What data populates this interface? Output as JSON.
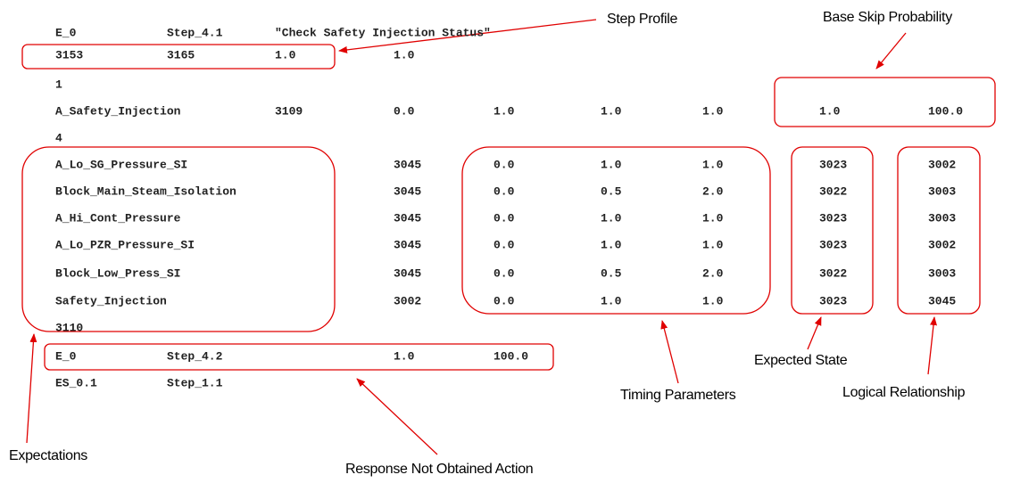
{
  "lines": [
    [
      "E_0",
      "Step_4.1",
      "\"Check Safety Injection Status\""
    ],
    [
      "3153",
      "3165",
      "1.0",
      "1.0"
    ],
    [
      "1"
    ],
    [
      "A_Safety_Injection",
      "3109",
      "0.0",
      "1.0",
      "1.0",
      "1.0",
      "1.0",
      "100.0"
    ],
    [
      "4"
    ],
    [
      "A_Lo_SG_Pressure_SI",
      "3045",
      "0.0",
      "1.0",
      "1.0",
      "3023",
      "3002"
    ],
    [
      "Block_Main_Steam_Isolation",
      "3045",
      "0.0",
      "0.5",
      "2.0",
      "3022",
      "3003"
    ],
    [
      "A_Hi_Cont_Pressure",
      "3045",
      "0.0",
      "1.0",
      "1.0",
      "3023",
      "3003"
    ],
    [
      "A_Lo_PZR_Pressure_SI",
      "3045",
      "0.0",
      "1.0",
      "1.0",
      "3023",
      "3002"
    ],
    [
      "Block_Low_Press_SI",
      "3045",
      "0.0",
      "0.5",
      "2.0",
      "3022",
      "3003"
    ],
    [
      "Safety_Injection",
      "3002",
      "0.0",
      "1.0",
      "1.0",
      "3023",
      "3045"
    ],
    [
      "3110"
    ],
    [
      "E_0",
      "Step_4.2",
      "1.0",
      "100.0"
    ],
    [
      "ES_0.1",
      "Step_1.1"
    ]
  ],
  "annotations": {
    "step_profile": "Step Profile",
    "base_skip_probability": "Base Skip Probability",
    "expectations": "Expectations",
    "response_not_obtained_action": "Response Not Obtained Action",
    "timing_parameters": "Timing Parameters",
    "expected_state": "Expected State",
    "logical_relationship": "Logical Relationship"
  }
}
